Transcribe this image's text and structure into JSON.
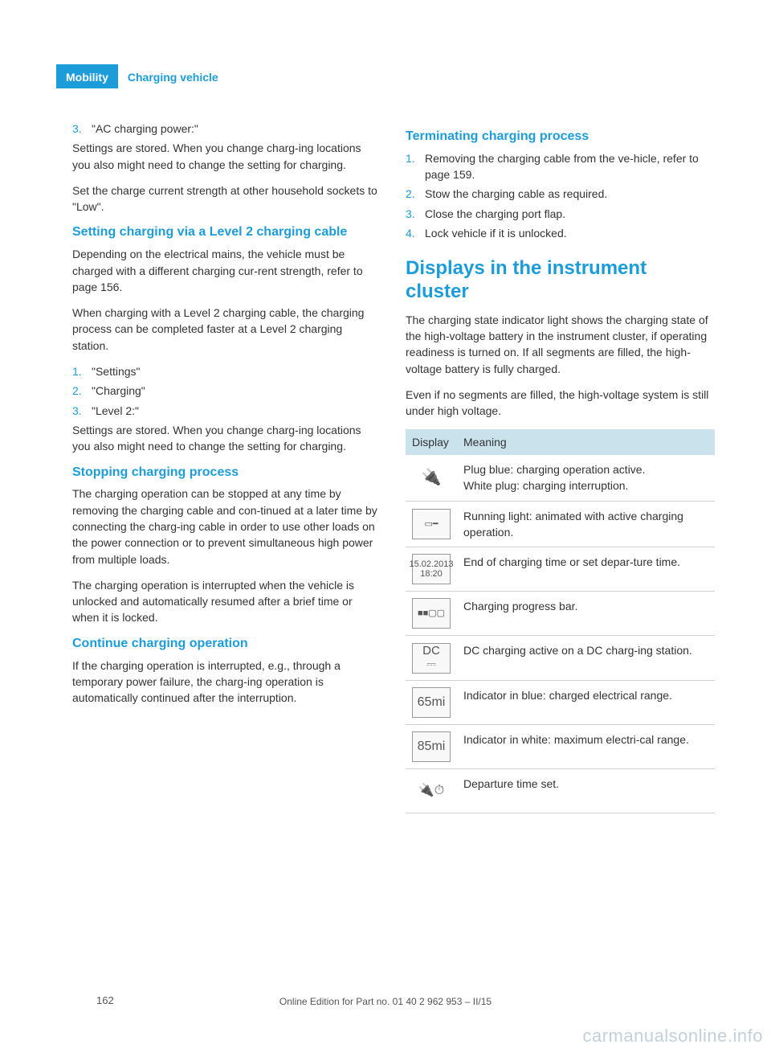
{
  "header": {
    "category": "Mobility",
    "section": "Charging vehicle"
  },
  "colors": {
    "accent": "#1c9dd9",
    "table_header_bg": "#c9e2ec",
    "text": "#333333",
    "border": "#d0d0d0"
  },
  "left": {
    "first_list": [
      {
        "num": "3.",
        "text": "\"AC charging power:\""
      }
    ],
    "p1": "Settings are stored. When you change charg‐ing locations you also might need to change the setting for charging.",
    "p2": "Set the charge current strength at other household sockets to \"Low\".",
    "h1": "Setting charging via a Level 2 charging cable",
    "p3": "Depending on the electrical mains, the vehicle must be charged with a different charging cur‐rent strength, refer to page 156.",
    "p4": "When charging with a Level 2 charging cable, the charging process can be completed faster at a Level 2 charging station.",
    "list2": [
      {
        "num": "1.",
        "text": "\"Settings\""
      },
      {
        "num": "2.",
        "text": "\"Charging\""
      },
      {
        "num": "3.",
        "text": "\"Level 2:\""
      }
    ],
    "p5": "Settings are stored. When you change charg‐ing locations you also might need to change the setting for charging.",
    "h2": "Stopping charging process",
    "p6": "The charging operation can be stopped at any time by removing the charging cable and con‐tinued at a later time by connecting the charg‐ing cable in order to use other loads on the power connection or to prevent simultaneous high power from multiple loads.",
    "p7": "The charging operation is interrupted when the vehicle is unlocked and automatically resumed after a brief time or when it is locked.",
    "h3": "Continue charging operation",
    "p8": "If the charging operation is interrupted, e.g., through a temporary power failure, the charg‐ing operation is automatically continued after the interruption."
  },
  "right": {
    "h1": "Terminating charging process",
    "list1": [
      {
        "num": "1.",
        "text": "Removing the charging cable from the ve‐hicle, refer to page 159."
      },
      {
        "num": "2.",
        "text": "Stow the charging cable as required."
      },
      {
        "num": "3.",
        "text": "Close the charging port flap."
      },
      {
        "num": "4.",
        "text": "Lock vehicle if it is unlocked."
      }
    ],
    "h2": "Displays in the instrument cluster",
    "p1": "The charging state indicator light shows the charging state of the high-voltage battery in the instrument cluster, if operating readiness is turned on. If all segments are filled, the high-voltage battery is fully charged.",
    "p2": "Even if no segments are filled, the high-voltage system is still under high voltage.",
    "table": {
      "headers": [
        "Display",
        "Meaning"
      ],
      "rows": [
        {
          "icon": "plug",
          "icon_label": "🔌",
          "meaning": "Plug blue: charging operation active.\nWhite plug: charging interruption."
        },
        {
          "icon": "running-light",
          "icon_label": "▭━",
          "meaning": "Running light: animated with active charging operation."
        },
        {
          "icon": "datetime",
          "icon_label": "15.02.2013\n18:20",
          "meaning": "End of charging time or set depar‐ture time."
        },
        {
          "icon": "progress",
          "icon_label": "■■▢▢",
          "meaning": "Charging progress bar."
        },
        {
          "icon": "dc",
          "icon_label": "DC\n⎓",
          "meaning": "DC charging active on a DC charg‐ing station."
        },
        {
          "icon": "range-blue",
          "icon_label": "65mi",
          "meaning": "Indicator in blue: charged electrical range."
        },
        {
          "icon": "range-white",
          "icon_label": "85mi",
          "meaning": "Indicator in white: maximum electri‐cal range."
        },
        {
          "icon": "departure",
          "icon_label": "🔌⏱",
          "meaning": "Departure time set."
        }
      ]
    }
  },
  "footer": {
    "page": "162",
    "edition": "Online Edition for Part no. 01 40 2 962 953 – II/15",
    "watermark": "carmanualsonline.info"
  }
}
